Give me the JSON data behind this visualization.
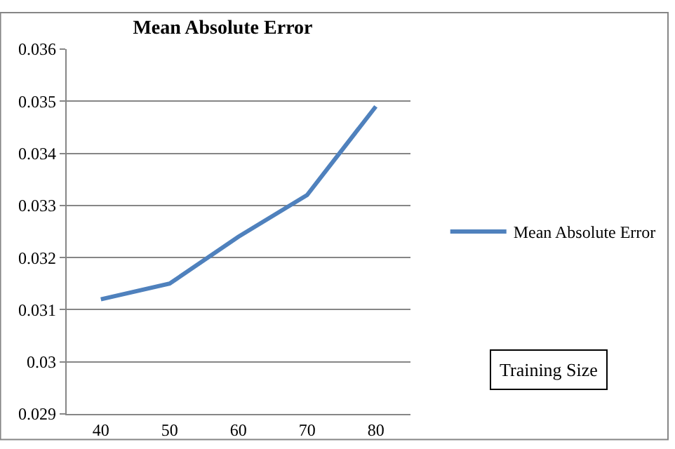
{
  "chart_data": {
    "type": "line",
    "title": "Mean Absolute Error",
    "xlabel": "Training Size",
    "categories": [
      "40",
      "50",
      "60",
      "70",
      "80"
    ],
    "series": [
      {
        "name": "Mean Absolute Error",
        "color": "#4f81bd",
        "values": [
          0.0312,
          0.0315,
          0.0324,
          0.0332,
          0.0349
        ]
      }
    ],
    "ylim": [
      0.029,
      0.036
    ],
    "yticks": [
      0.029,
      0.03,
      0.031,
      0.032,
      0.033,
      0.034,
      0.035,
      0.036
    ],
    "grid": "y",
    "legend": "right",
    "marker": "none",
    "line_style": "solid"
  }
}
